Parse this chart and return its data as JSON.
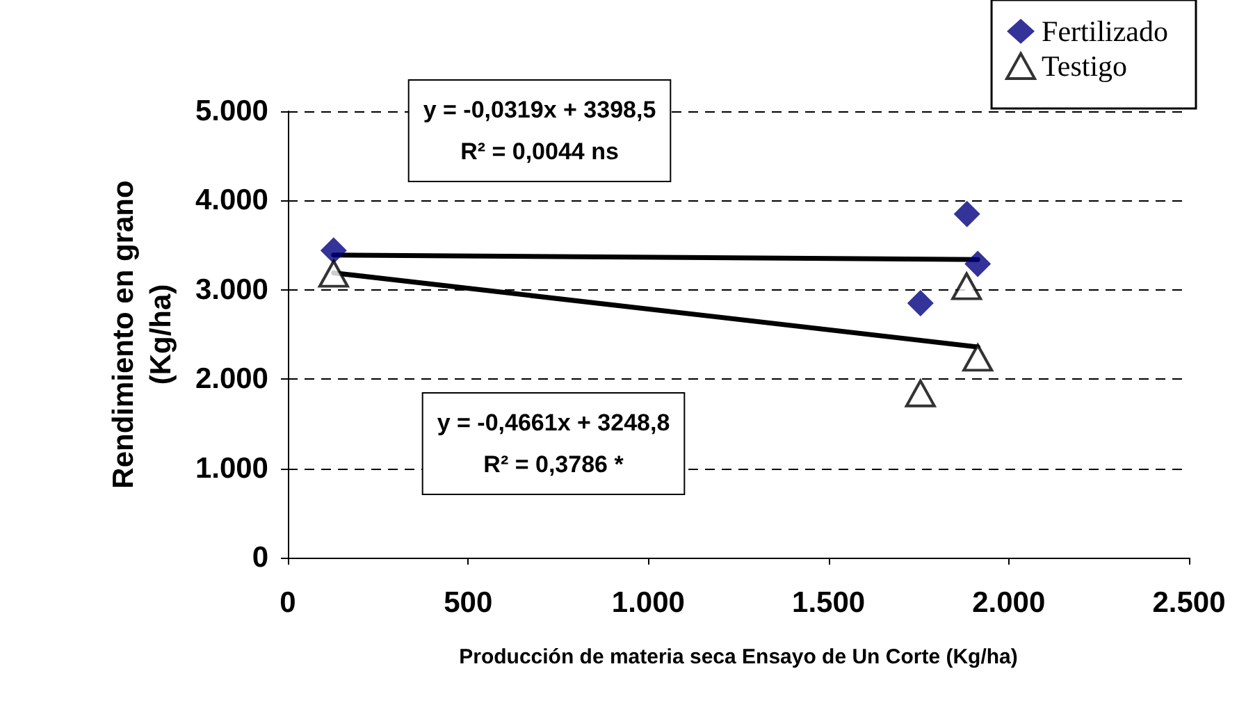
{
  "chart_data": {
    "type": "scatter",
    "xlabel": "Producción de materia seca Ensayo de Un Corte (Kg/ha)",
    "ylabel": "Rendimiento en grano\n(Kg/ha)",
    "series": [
      {
        "name": "Fertilizado",
        "color": "#000080",
        "marker": "diamond",
        "x": [
          127,
          1755,
          1884,
          1914
        ],
        "values": [
          3440,
          2850,
          3850,
          3290
        ]
      },
      {
        "name": "Testigo",
        "color": "#ffffff",
        "marker": "triangle",
        "x": [
          127,
          1755,
          1883,
          1914
        ],
        "values": [
          3180,
          1840,
          3040,
          2240
        ]
      },
      {
        "type": "line",
        "color": "#000000",
        "marker": "none",
        "x": [
          127,
          1914
        ],
        "values": [
          3390,
          3340
        ]
      },
      {
        "type": "line",
        "color": "#000000",
        "marker": "none",
        "x": [
          127,
          1914
        ],
        "values": [
          3190,
          2360
        ]
      }
    ],
    "annotations": [
      "y = -0,0319x + 3398,5\nR² = 0,0044 ns",
      "y = -0,4661x + 3248,8\nR² = 0,3786 *"
    ],
    "xlim": [
      0,
      2500
    ],
    "xticks": [
      0,
      500,
      {
        "value": 1000,
        "label": "1.000"
      },
      {
        "value": 1500,
        "label": "1.500"
      },
      {
        "value": 2000,
        "label": "2.000"
      },
      {
        "value": 2500,
        "label": "2.500"
      }
    ],
    "ylim": [
      0,
      5000
    ],
    "yticks": [
      0,
      {
        "value": 1000,
        "label": "1.000"
      },
      {
        "value": 2000,
        "label": "2.000"
      },
      {
        "value": 3000,
        "label": "3.000"
      },
      {
        "value": 4000,
        "label": "4.000"
      },
      {
        "value": 5000,
        "label": "5.000"
      }
    ],
    "grid": "y",
    "legend": "top right"
  }
}
